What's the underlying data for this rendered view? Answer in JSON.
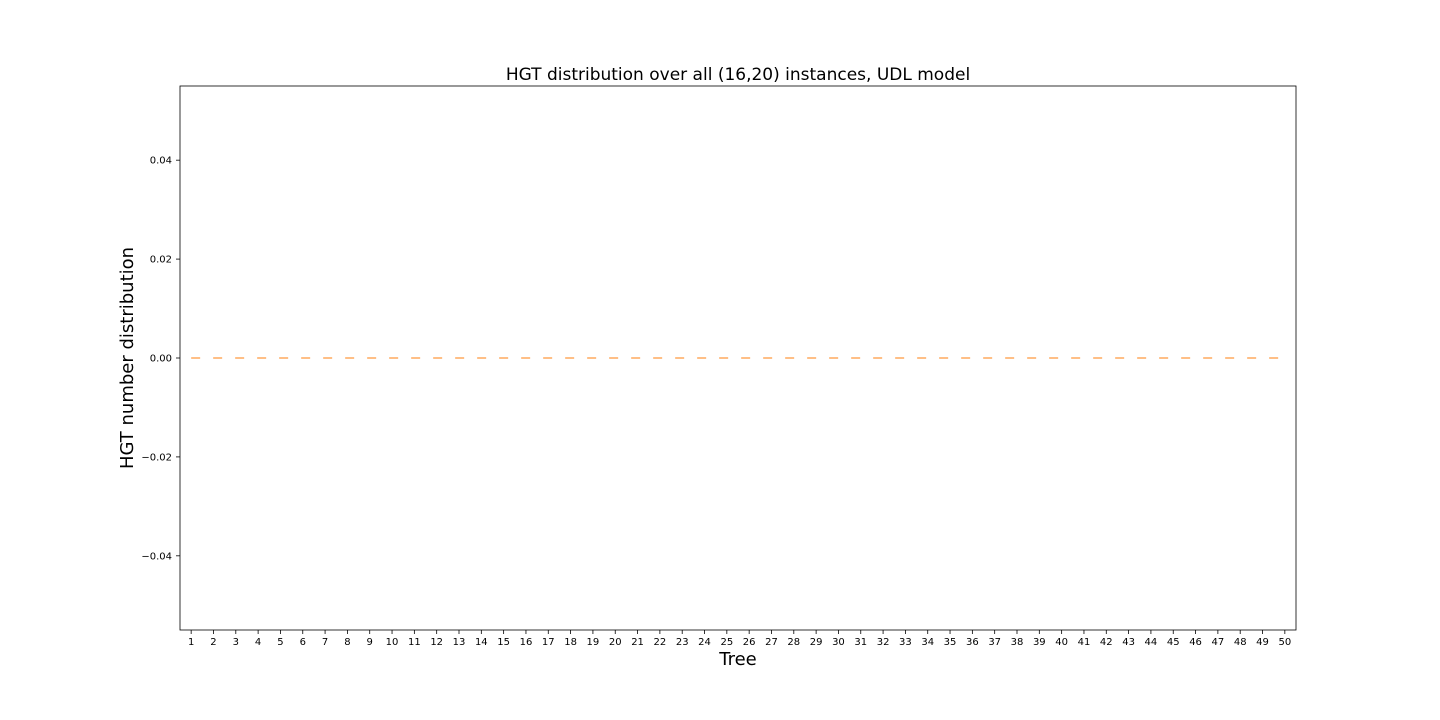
{
  "chart_data": {
    "type": "line",
    "title": "HGT distribution over all (16,20) instances, UDL model",
    "xlabel": "Tree",
    "ylabel": "HGT number distribution",
    "ylim": [
      -0.055,
      0.055
    ],
    "y_ticks": [
      -0.04,
      -0.02,
      0.0,
      0.02,
      0.04
    ],
    "y_tick_labels": [
      "−0.04",
      "−0.02",
      "0.00",
      "0.02",
      "0.04"
    ],
    "categories": [
      "1",
      "2",
      "3",
      "4",
      "5",
      "6",
      "7",
      "8",
      "9",
      "10",
      "11",
      "12",
      "13",
      "14",
      "15",
      "16",
      "17",
      "18",
      "19",
      "20",
      "21",
      "22",
      "23",
      "24",
      "25",
      "26",
      "27",
      "28",
      "29",
      "30",
      "31",
      "32",
      "33",
      "34",
      "35",
      "36",
      "37",
      "38",
      "39",
      "40",
      "41",
      "42",
      "43",
      "44",
      "45",
      "46",
      "47",
      "48",
      "49",
      "50"
    ],
    "series": [
      {
        "color": "#ff7f0e",
        "style": "dashed",
        "values": [
          0,
          0,
          0,
          0,
          0,
          0,
          0,
          0,
          0,
          0,
          0,
          0,
          0,
          0,
          0,
          0,
          0,
          0,
          0,
          0,
          0,
          0,
          0,
          0,
          0,
          0,
          0,
          0,
          0,
          0,
          0,
          0,
          0,
          0,
          0,
          0,
          0,
          0,
          0,
          0,
          0,
          0,
          0,
          0,
          0,
          0,
          0,
          0,
          0,
          0
        ]
      }
    ],
    "grid": false
  }
}
